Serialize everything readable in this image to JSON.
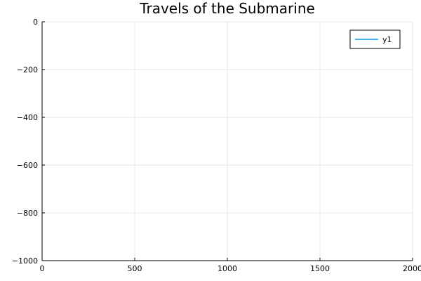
{
  "chart_data": {
    "type": "line",
    "title": "Travels of the Submarine",
    "xlabel": "",
    "ylabel": "",
    "xlim": [
      0,
      2000
    ],
    "ylim": [
      -1000,
      0
    ],
    "x_ticks": [
      0,
      500,
      1000,
      1500,
      2000
    ],
    "y_ticks": [
      0,
      -200,
      -400,
      -600,
      -800,
      -1000
    ],
    "x_tick_labels": [
      "0",
      "500",
      "1000",
      "1500",
      "2000"
    ],
    "y_tick_labels": [
      "0",
      "−200",
      "−400",
      "−600",
      "−800",
      "−1000"
    ],
    "grid": true,
    "legend_position": "top-right",
    "series": [
      {
        "name": "y1",
        "color": "#009af9",
        "x": [],
        "y": []
      }
    ]
  }
}
